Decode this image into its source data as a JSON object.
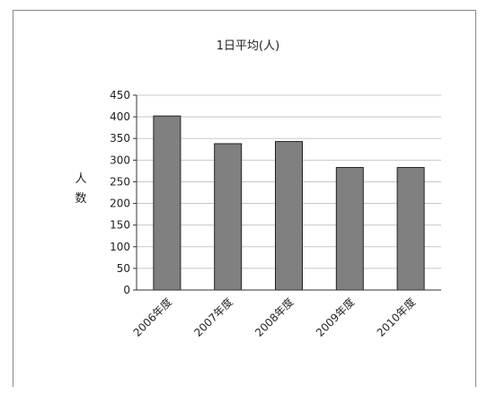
{
  "chart_data": {
    "type": "bar",
    "title": "1日平均(人)",
    "ylabel": "人数",
    "xlabel": "",
    "categories": [
      "2006年度",
      "2007年度",
      "2008年度",
      "2009年度",
      "2010年度"
    ],
    "values": [
      402,
      338,
      343,
      283,
      283
    ],
    "ylim": [
      0,
      450
    ],
    "yticks": [
      0,
      50,
      100,
      150,
      200,
      250,
      300,
      350,
      400,
      450
    ],
    "grid": true,
    "legend": "none",
    "colors": {
      "bar": "#808080",
      "bar_stroke": "#222222",
      "grid": "#c8c8c8",
      "axis": "#333333"
    }
  }
}
